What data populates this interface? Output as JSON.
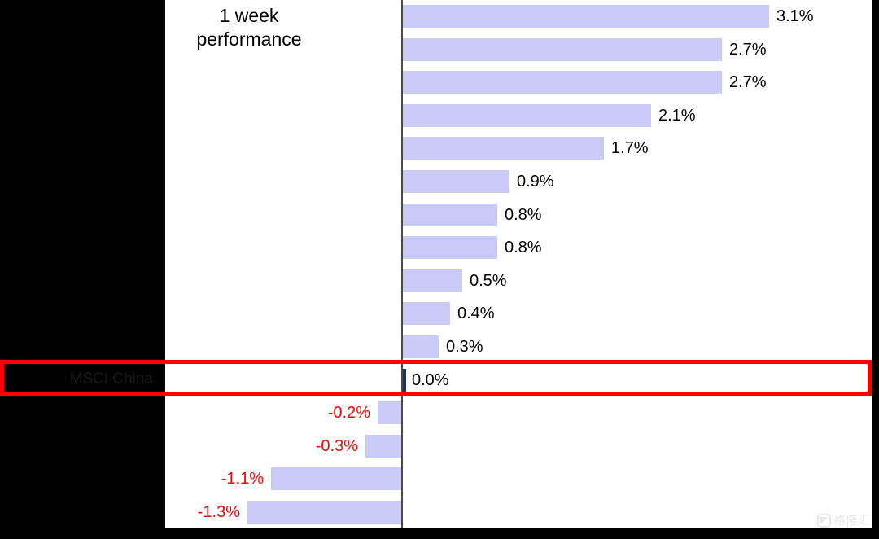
{
  "chart_data": {
    "type": "bar",
    "orientation": "horizontal",
    "title": "1 week performance",
    "title_lines": [
      "1 week",
      "performance"
    ],
    "categories": [
      "",
      "",
      "",
      "",
      "",
      "",
      "",
      "",
      "",
      "",
      "",
      "MSCI China",
      "",
      "",
      "",
      ""
    ],
    "categories_obscured": true,
    "values": [
      3.1,
      2.7,
      2.7,
      2.1,
      1.7,
      0.9,
      0.8,
      0.8,
      0.5,
      0.4,
      0.3,
      0.0,
      -0.2,
      -0.3,
      -1.1,
      -1.3
    ],
    "value_labels": [
      "3.1%",
      "2.7%",
      "2.7%",
      "2.1%",
      "1.7%",
      "0.9%",
      "0.8%",
      "0.8%",
      "0.5%",
      "0.4%",
      "0.3%",
      "0.0%",
      "-0.2%",
      "-0.3%",
      "-1.1%",
      "-1.3%"
    ],
    "highlighted_index": 11,
    "legend": "none",
    "grid": false,
    "colors": {
      "bar": "#cacaf6",
      "highlight_bar": "#203071",
      "positive_label": "#000000",
      "negative_label": "#ff0000",
      "axis": "#4a4a4a",
      "highlight_box": "#fe0000",
      "background": "#ffffff",
      "mask": "#000000"
    },
    "annotation": {
      "type": "highlight-box",
      "row_index": 11,
      "color": "#fe0000"
    }
  },
  "watermark": {
    "text": "格隆汇"
  }
}
